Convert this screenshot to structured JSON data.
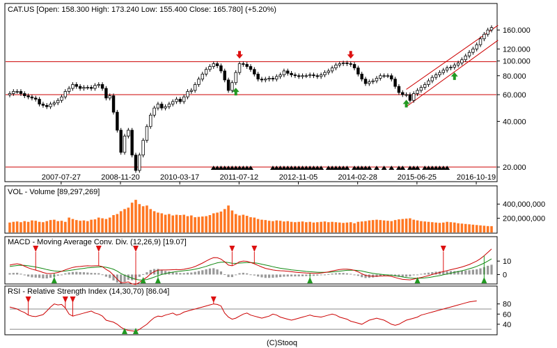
{
  "footer": "(C)Stooq",
  "colors": {
    "price": "#000000",
    "support": "#cc0000",
    "volume": "#ff7722",
    "macd": "#cc0000",
    "signal": "#118811",
    "hist": "#999999",
    "rsi": "#cc0000",
    "buy": "#229922",
    "sell": "#dd1111",
    "grid": "#888888"
  },
  "chart_data": [
    {
      "type": "candlestick",
      "name": "price",
      "header": "CAT.US [Open: 158.300  High: 173.240  Low: 155.400  Close: 165.780]  (+5.20%)",
      "y_scale": "log",
      "ylim": [
        18,
        200
      ],
      "y_ticks": [
        20,
        40,
        60,
        80,
        100,
        120,
        160
      ],
      "y_tick_labels": [
        "20.000",
        "40.000",
        "60.000",
        "80.000",
        "100.000",
        "120.000",
        "160.000"
      ],
      "x_tick_labels": [
        "2007-07-27",
        "2008-11-20",
        "2010-03-17",
        "2011-07-12",
        "2012-11-05",
        "2014-02-28",
        "2015-06-25",
        "2016-10-19"
      ],
      "close": [
        61,
        63,
        63,
        61,
        59,
        58,
        57,
        56,
        52,
        51,
        50,
        52,
        53,
        55,
        58,
        63,
        66,
        70,
        68,
        66,
        67,
        67,
        66,
        69,
        70,
        66,
        57,
        59,
        46,
        35,
        25,
        32,
        35,
        24,
        19,
        24,
        30,
        37,
        44,
        49,
        52,
        49,
        50,
        52,
        54,
        56,
        54,
        58,
        63,
        64,
        70,
        76,
        82,
        88,
        92,
        96,
        93,
        86,
        75,
        64,
        72,
        84,
        96,
        95,
        92,
        88,
        82,
        76,
        75,
        76,
        77,
        76,
        79,
        81,
        86,
        83,
        81,
        80,
        79,
        80,
        80,
        81,
        80,
        79,
        81,
        84,
        86,
        90,
        94,
        96,
        97,
        96,
        95,
        90,
        82,
        76,
        71,
        73,
        74,
        77,
        80,
        80,
        80,
        76,
        68,
        62,
        60,
        60,
        55,
        61,
        64,
        67,
        70,
        74,
        78,
        81,
        84,
        87,
        90,
        91,
        94,
        97,
        102,
        108,
        114,
        120,
        128,
        140,
        150,
        160,
        166
      ],
      "support_lines": [
        99,
        60,
        20
      ],
      "channel": {
        "start_index": 107,
        "end_index": 131,
        "lower": [
          50,
          137
        ],
        "upper": [
          65,
          172
        ]
      },
      "buy_signals": [
        61,
        107,
        120
      ],
      "sell_signals": [
        62,
        92
      ],
      "signal_triangles": [
        55,
        56,
        57,
        58,
        59,
        60,
        61,
        62,
        63,
        64,
        65,
        71,
        72,
        73,
        74,
        75,
        76,
        77,
        78,
        79,
        80,
        81,
        82,
        83,
        84,
        86,
        87,
        88,
        89,
        90,
        91,
        93,
        94,
        95,
        96,
        97,
        99,
        101,
        103,
        105,
        106,
        108,
        109,
        110,
        112,
        113,
        114,
        115,
        116,
        117,
        118
      ]
    },
    {
      "type": "bar",
      "name": "volume",
      "header": "VOL - Volume [89,297,269]",
      "ylim": [
        0,
        520000000
      ],
      "y_ticks": [
        200000000,
        400000000
      ],
      "y_tick_labels": [
        "200,000,000",
        "400,000,000"
      ],
      "values": [
        140,
        150,
        155,
        145,
        160,
        150,
        170,
        165,
        150,
        145,
        160,
        175,
        180,
        160,
        165,
        150,
        210,
        190,
        175,
        165,
        170,
        160,
        180,
        185,
        210,
        200,
        190,
        210,
        245,
        260,
        300,
        330,
        350,
        420,
        460,
        400,
        370,
        380,
        330,
        300,
        280,
        270,
        250,
        260,
        240,
        250,
        245,
        250,
        230,
        240,
        215,
        220,
        225,
        230,
        245,
        270,
        280,
        295,
        330,
        380,
        310,
        260,
        240,
        250,
        235,
        215,
        210,
        190,
        180,
        175,
        165,
        160,
        170,
        165,
        155,
        160,
        150,
        145,
        150,
        155,
        145,
        150,
        140,
        145,
        150,
        155,
        145,
        150,
        145,
        140,
        135,
        140,
        145,
        130,
        150,
        155,
        160,
        170,
        175,
        180,
        175,
        170,
        165,
        160,
        175,
        185,
        190,
        195,
        200,
        180,
        170,
        160,
        155,
        150,
        145,
        140,
        135,
        140,
        150,
        145,
        140,
        130,
        125,
        120,
        115,
        110,
        105,
        100,
        95,
        90,
        89.3
      ]
    },
    {
      "type": "line",
      "name": "macd",
      "header": "MACD - Moving Average Conv. Div. (12,26,9) [19.07]",
      "ylim": [
        -6,
        22
      ],
      "y_ticks": [
        0,
        10
      ],
      "y_tick_labels": [
        "0",
        "10"
      ],
      "series": [
        {
          "name": "MACD",
          "values": [
            7,
            7.6,
            8,
            7.5,
            6.2,
            5,
            4,
            3.3,
            2.5,
            1.5,
            0.8,
            0.7,
            1,
            1.5,
            2.4,
            3.5,
            4.5,
            5.3,
            5.8,
            6,
            6.3,
            6.5,
            6.4,
            6.5,
            6.6,
            5.8,
            3.8,
            2.2,
            -0.5,
            -3.5,
            -6,
            -6,
            -5.5,
            -7,
            -7.5,
            -5.8,
            -3.8,
            -2,
            0.5,
            2.2,
            3.3,
            3.4,
            3.4,
            3.5,
            3.6,
            3.7,
            3.6,
            3.9,
            4.5,
            5,
            6,
            7.2,
            8.5,
            10,
            11.5,
            12.6,
            12.5,
            11.5,
            9.5,
            7,
            6.5,
            7.8,
            9.5,
            10,
            9.8,
            9,
            8,
            6.8,
            5.6,
            4.6,
            4,
            3.4,
            3,
            2.8,
            2.7,
            2.4,
            2.1,
            1.8,
            1.5,
            1.3,
            1.1,
            1,
            0.9,
            0.9,
            1.1,
            1.5,
            2,
            2.6,
            3.2,
            3.7,
            4,
            4,
            3.7,
            3.1,
            2,
            0.6,
            -0.6,
            -1.1,
            -1.3,
            -1.3,
            -1.1,
            -1,
            -1,
            -1.4,
            -2.2,
            -3,
            -3.6,
            -3.8,
            -4,
            -3.4,
            -2.8,
            -2.2,
            -1.5,
            -0.8,
            0,
            0.8,
            1.5,
            2.2,
            2.9,
            3.6,
            4.2,
            4.9,
            5.6,
            6.5,
            7.5,
            8.7,
            10,
            11.8,
            14,
            16.5,
            19
          ]
        },
        {
          "name": "Signal",
          "values": [
            6,
            6.4,
            6.7,
            6.9,
            6.8,
            6.5,
            6.1,
            5.6,
            5,
            4.4,
            3.7,
            3.1,
            2.7,
            2.4,
            2.4,
            2.6,
            3,
            3.4,
            3.8,
            4.2,
            4.6,
            5,
            5.2,
            5.4,
            5.6,
            5.7,
            5.4,
            4.8,
            3.9,
            2.5,
            0.8,
            -0.6,
            -1.6,
            -2.7,
            -3.6,
            -4.1,
            -4.1,
            -3.7,
            -2.9,
            -1.9,
            -0.9,
            0,
            0.7,
            1.3,
            1.8,
            2.2,
            2.5,
            2.8,
            3.1,
            3.5,
            4,
            4.6,
            5.3,
            6.1,
            7,
            7.9,
            8.7,
            9.2,
            9.3,
            8.9,
            8.4,
            8.3,
            8.5,
            8.7,
            8.9,
            8.9,
            8.7,
            8.3,
            7.7,
            7.1,
            6.5,
            5.8,
            5.2,
            4.7,
            4.3,
            3.9,
            3.5,
            3.2,
            2.9,
            2.6,
            2.3,
            2.1,
            1.9,
            1.7,
            1.6,
            1.6,
            1.7,
            1.9,
            2.2,
            2.5,
            2.8,
            3.1,
            3.2,
            3.2,
            3,
            2.6,
            2,
            1.4,
            0.9,
            0.5,
            0.2,
            -0.1,
            -0.3,
            -0.5,
            -0.9,
            -1.3,
            -1.8,
            -2.2,
            -2.6,
            -2.8,
            -2.8,
            -2.7,
            -2.5,
            -2.2,
            -1.8,
            -1.3,
            -0.8,
            -0.2,
            0.4,
            1,
            1.6,
            2.2,
            2.8,
            3.5,
            4.3,
            5.1,
            6.1,
            7.2,
            8.5,
            10,
            11.7
          ]
        }
      ],
      "buy_signals": [
        20,
        33,
        37,
        90,
        122,
        150
      ],
      "sell_signals": [
        14,
        26,
        33,
        75,
        86,
        130
      ],
      "buy_signal_series_indexes": [
        12,
        36,
        40,
        81,
        110,
        128
      ],
      "sell_signal_series_indexes": [
        7,
        24,
        34,
        60,
        66,
        117
      ]
    },
    {
      "type": "line",
      "name": "rsi",
      "header": "RSI - Relative Strength Index (14,30,70) [86.04]",
      "ylim": [
        22,
        96
      ],
      "y_ticks": [
        40,
        60,
        80
      ],
      "y_tick_labels": [
        "40",
        "60",
        "80"
      ],
      "reference_lines": [
        30,
        70
      ],
      "values": [
        74,
        72,
        70,
        66,
        63,
        58,
        56,
        55,
        57,
        59,
        66,
        74,
        80,
        78,
        79,
        72,
        60,
        56,
        58,
        60,
        62,
        64,
        66,
        62,
        60,
        56,
        48,
        46,
        44,
        40,
        34,
        30,
        28,
        27,
        26,
        30,
        35,
        40,
        47,
        53,
        56,
        55,
        58,
        60,
        62,
        58,
        60,
        64,
        66,
        68,
        70,
        72,
        74,
        76,
        78,
        80,
        79,
        76,
        62,
        54,
        50,
        52,
        56,
        60,
        62,
        58,
        56,
        54,
        52,
        54,
        56,
        60,
        58,
        54,
        52,
        50,
        48,
        50,
        52,
        54,
        56,
        58,
        56,
        55,
        54,
        56,
        58,
        60,
        58,
        54,
        52,
        50,
        46,
        44,
        42,
        40,
        44,
        48,
        50,
        52,
        50,
        48,
        44,
        40,
        38,
        40,
        44,
        48,
        50,
        52,
        54,
        58,
        60,
        62,
        64,
        66,
        68,
        70,
        72,
        74,
        76,
        78,
        80,
        82,
        84,
        85,
        86.04
      ],
      "buy_signals": [
        31,
        34
      ],
      "sell_signals": [
        5,
        15,
        17,
        55
      ]
    }
  ]
}
